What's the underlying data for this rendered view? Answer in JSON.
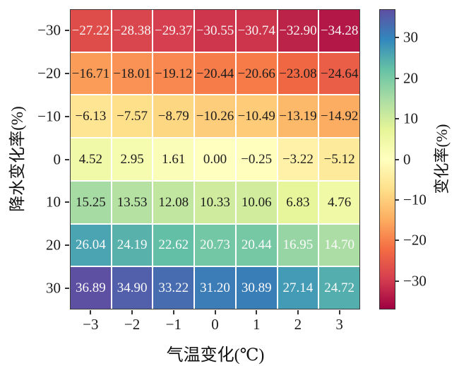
{
  "chart_data": {
    "type": "heatmap",
    "title": "",
    "xlabel": "气温变化(℃)",
    "ylabel": "降水变化率(%)",
    "colorbar_label": "变化率(%)",
    "x_tick_labels": [
      "−3",
      "−2",
      "−1",
      "0",
      "1",
      "2",
      "3"
    ],
    "y_tick_labels": [
      "−30",
      "−20",
      "−10",
      "0",
      "10",
      "20",
      "30"
    ],
    "rows": [
      {
        "y": "−30",
        "values": [
          -27.22,
          -28.38,
          -29.37,
          -30.55,
          -30.74,
          -32.9,
          -34.28
        ],
        "text_color": "#f7f3f3"
      },
      {
        "y": "−20",
        "values": [
          -16.71,
          -18.01,
          -19.12,
          -20.44,
          -20.66,
          -23.08,
          -24.64
        ],
        "text_color": "#1c1c1c"
      },
      {
        "y": "−10",
        "values": [
          -6.13,
          -7.57,
          -8.79,
          -10.26,
          -10.49,
          -13.19,
          -14.92
        ],
        "text_color": "#1c1c1c"
      },
      {
        "y": "0",
        "values": [
          4.52,
          2.95,
          1.61,
          0.0,
          -0.25,
          -3.22,
          -5.12
        ],
        "text_color": "#1c1c1c"
      },
      {
        "y": "10",
        "values": [
          15.25,
          13.53,
          12.08,
          10.33,
          10.06,
          6.83,
          4.76
        ],
        "text_color": "#1c1c1c"
      },
      {
        "y": "20",
        "values": [
          26.04,
          24.19,
          22.62,
          20.73,
          20.44,
          16.95,
          14.7
        ],
        "text_color": "#fbfbfb"
      },
      {
        "y": "30",
        "values": [
          36.89,
          34.9,
          33.22,
          31.2,
          30.89,
          27.14,
          24.72
        ],
        "text_color": "#fbfbfb"
      }
    ],
    "vmin": -37,
    "vmax": 37,
    "colormap": "Spectral",
    "colormap_anchors": [
      "#9e0142",
      "#d53e4f",
      "#f46d43",
      "#fdae61",
      "#fee08b",
      "#ffffbf",
      "#e6f598",
      "#abdda4",
      "#66c2a5",
      "#3288bd",
      "#5e4fa2"
    ],
    "colorbar_ticks": [
      30,
      20,
      10,
      0,
      -10,
      -20,
      -30
    ],
    "colorbar_tick_labels": [
      "30",
      "20",
      "10",
      "0",
      "−10",
      "−20",
      "−30"
    ],
    "grid_line_color": "#ffffff",
    "background": "#ffffff",
    "legend_position": "right-colorbar",
    "grid": false
  }
}
